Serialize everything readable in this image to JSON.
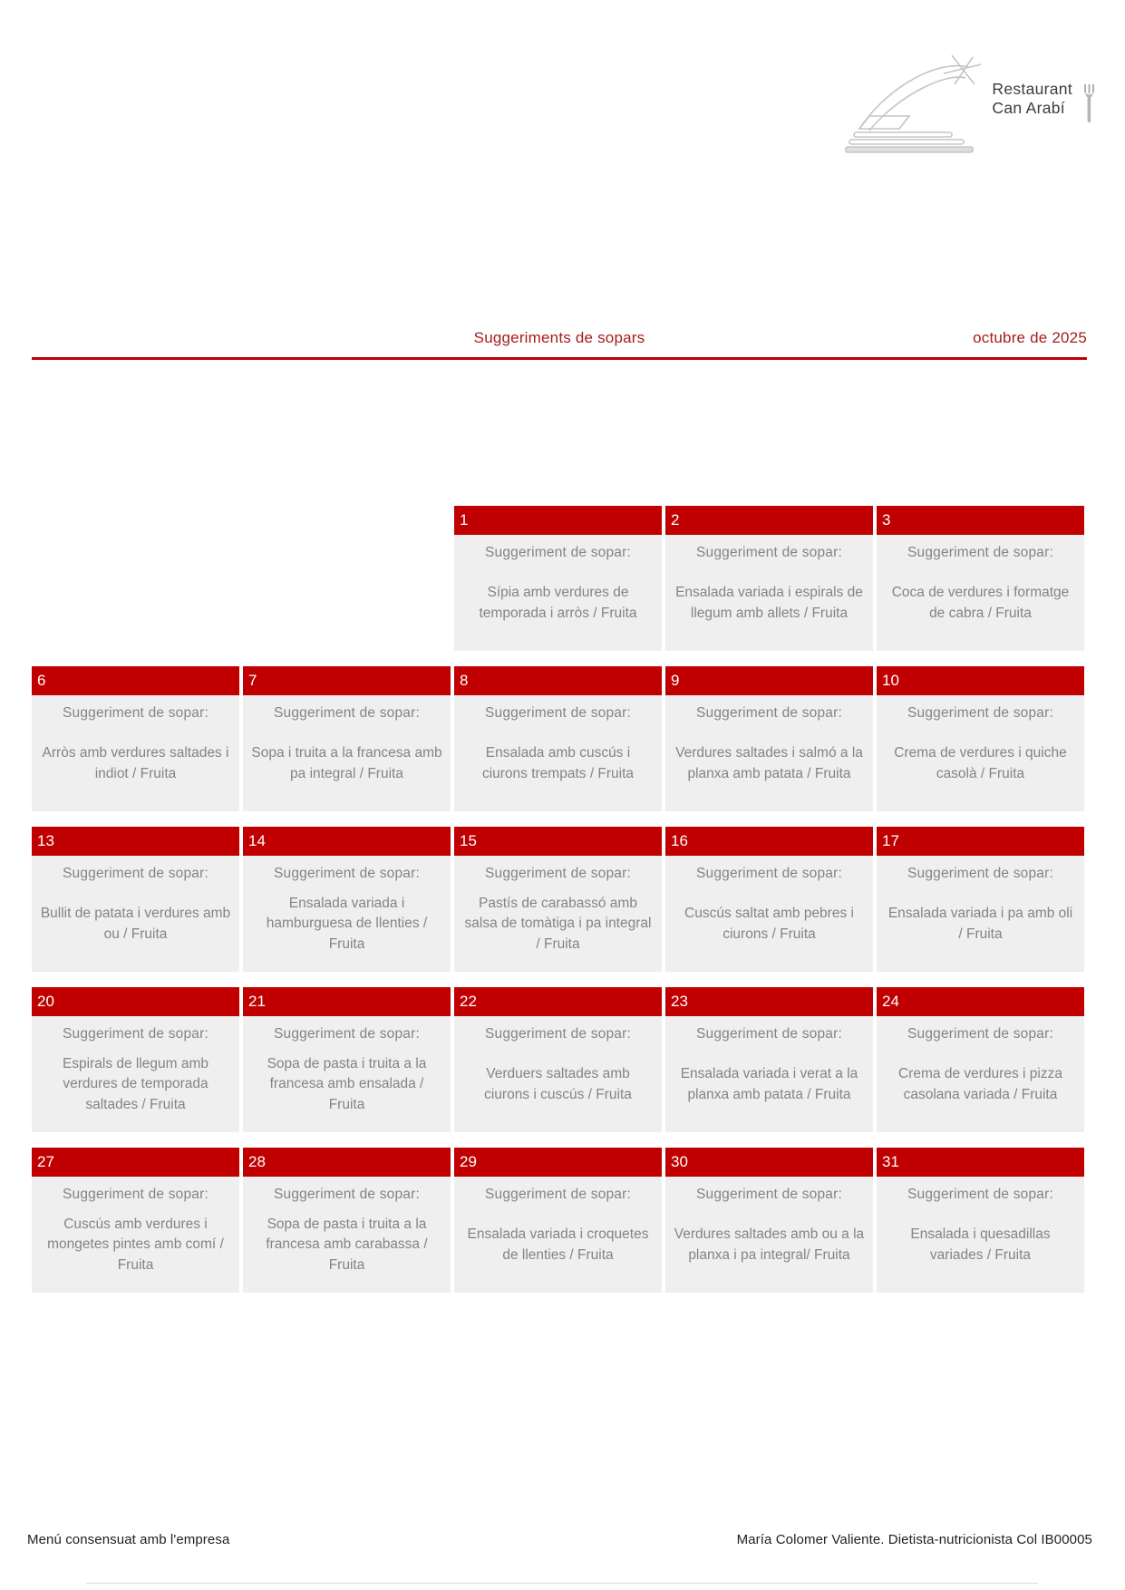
{
  "logo": {
    "name_line1": "Restaurant",
    "name_line2": "Can Arabí",
    "art_icon": "bridge-arch-icon",
    "utensil_icon": "fork-icon"
  },
  "header": {
    "title": "Suggeriments de sopars",
    "period": "octubre de 2025"
  },
  "calendar": {
    "suggestion_label": "Suggeriment de sopar:",
    "days": [
      {
        "day": "1",
        "row": 1,
        "col": 3,
        "menu": "Sípia amb verdures de temporada i arròs / Fruita"
      },
      {
        "day": "2",
        "row": 1,
        "col": 4,
        "menu": "Ensalada variada i espirals de llegum amb allets / Fruita"
      },
      {
        "day": "3",
        "row": 1,
        "col": 5,
        "menu": "Coca de verdures i formatge de cabra / Fruita"
      },
      {
        "day": "6",
        "row": 2,
        "col": 1,
        "menu": "Arròs amb verdures saltades i indiot / Fruita"
      },
      {
        "day": "7",
        "row": 2,
        "col": 2,
        "menu": "Sopa i truita a la francesa amb pa integral / Fruita"
      },
      {
        "day": "8",
        "row": 2,
        "col": 3,
        "menu": "Ensalada amb cuscús i ciurons trempats / Fruita"
      },
      {
        "day": "9",
        "row": 2,
        "col": 4,
        "menu": "Verdures saltades i salmó a la planxa amb patata / Fruita"
      },
      {
        "day": "10",
        "row": 2,
        "col": 5,
        "menu": "Crema de verdures i quiche casolà / Fruita"
      },
      {
        "day": "13",
        "row": 3,
        "col": 1,
        "menu": "Bullit de patata i verdures amb ou / Fruita"
      },
      {
        "day": "14",
        "row": 3,
        "col": 2,
        "menu": "Ensalada variada i hamburguesa de llenties / Fruita"
      },
      {
        "day": "15",
        "row": 3,
        "col": 3,
        "menu": "Pastís de carabassó amb salsa de tomàtiga i pa integral / Fruita"
      },
      {
        "day": "16",
        "row": 3,
        "col": 4,
        "menu": "Cuscús saltat amb pebres i ciurons / Fruita"
      },
      {
        "day": "17",
        "row": 3,
        "col": 5,
        "menu": "Ensalada variada i pa amb oli / Fruita"
      },
      {
        "day": "20",
        "row": 4,
        "col": 1,
        "menu": "Espirals de llegum amb verdures de temporada saltades / Fruita"
      },
      {
        "day": "21",
        "row": 4,
        "col": 2,
        "menu": "Sopa de pasta i truita a la francesa amb ensalada / Fruita"
      },
      {
        "day": "22",
        "row": 4,
        "col": 3,
        "menu": "Verduers saltades amb ciurons i cuscús / Fruita"
      },
      {
        "day": "23",
        "row": 4,
        "col": 4,
        "menu": "Ensalada variada i verat a la planxa amb patata / Fruita"
      },
      {
        "day": "24",
        "row": 4,
        "col": 5,
        "menu": "Crema de verdures i pizza casolana variada / Fruita"
      },
      {
        "day": "27",
        "row": 5,
        "col": 1,
        "menu": "Cuscús amb verdures i mongetes pintes amb comí / Fruita"
      },
      {
        "day": "28",
        "row": 5,
        "col": 2,
        "menu": "Sopa de pasta i truita a la francesa amb carabassa / Fruita"
      },
      {
        "day": "29",
        "row": 5,
        "col": 3,
        "menu": "Ensalada variada i croquetes de llenties / Fruita"
      },
      {
        "day": "30",
        "row": 5,
        "col": 4,
        "menu": "Verdures saltades amb ou a la planxa i pa integral/  Fruita"
      },
      {
        "day": "31",
        "row": 5,
        "col": 5,
        "menu": "Ensalada i quesadillas variades / Fruita"
      }
    ]
  },
  "footer": {
    "left": "Menú consensuat amb l'empresa",
    "right": "María Colomer Valiente. Dietista-nutricionista Col IB00005"
  },
  "colors": {
    "accent_red": "#c00000",
    "header_red": "#a61c1c",
    "cell_bg": "#efefef",
    "cell_text": "#848484",
    "logo_gray": "#c5c5c5",
    "logo_text": "#3c3c3c"
  }
}
